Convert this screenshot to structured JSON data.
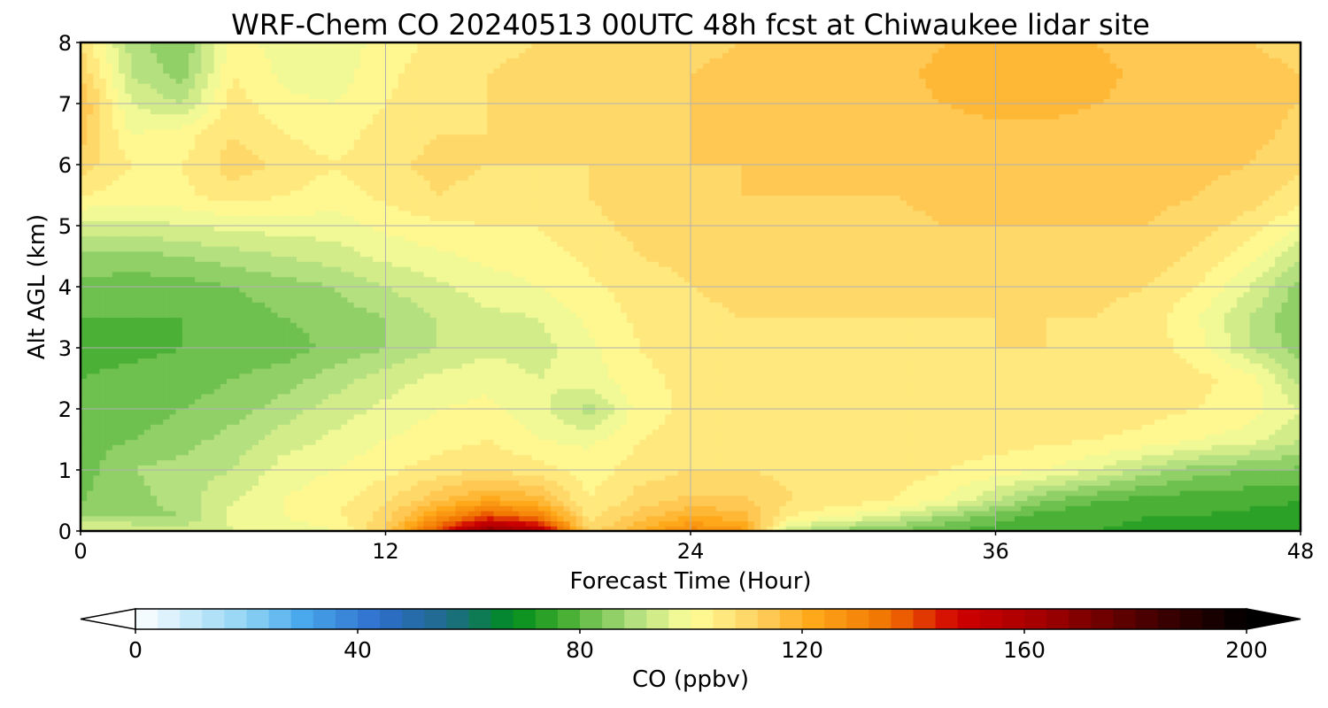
{
  "chart_data": {
    "type": "heatmap",
    "title": "WRF-Chem CO  20240513 00UTC 48h fcst at Chiwaukee lidar site",
    "xlabel": "Forecast Time (Hour)",
    "ylabel": "Alt AGL (km)",
    "xlim": [
      0,
      48
    ],
    "ylim": [
      0,
      8
    ],
    "xticks": [
      0,
      12,
      24,
      36,
      48
    ],
    "yticks": [
      0,
      1,
      2,
      3,
      4,
      5,
      6,
      7,
      8
    ],
    "grid": true,
    "x": [
      0,
      2,
      4,
      6,
      8,
      10,
      12,
      14,
      16,
      18,
      20,
      22,
      24,
      26,
      28,
      30,
      32,
      34,
      36,
      38,
      40,
      42,
      44,
      46,
      48
    ],
    "y": [
      0,
      0.25,
      0.5,
      1,
      1.5,
      2,
      2.5,
      3,
      3.5,
      4,
      4.5,
      5,
      5.5,
      6,
      6.5,
      7,
      7.5,
      8
    ],
    "z_units": "ppbv",
    "z": [
      [
        96,
        98,
        94,
        96,
        97,
        100,
        112,
        140,
        170,
        160,
        110,
        120,
        130,
        125,
        92,
        86,
        84,
        80,
        78,
        76,
        76,
        75,
        75,
        74,
        74
      ],
      [
        88,
        86,
        88,
        97,
        100,
        103,
        110,
        125,
        140,
        132,
        106,
        114,
        120,
        118,
        104,
        100,
        95,
        88,
        82,
        78,
        77,
        76,
        76,
        75,
        75
      ],
      [
        84,
        86,
        90,
        96,
        100,
        103,
        107,
        115,
        122,
        118,
        104,
        110,
        113,
        113,
        108,
        106,
        104,
        100,
        92,
        84,
        80,
        78,
        77,
        77,
        76
      ],
      [
        82,
        88,
        90,
        92,
        98,
        100,
        103,
        106,
        108,
        106,
        102,
        106,
        108,
        108,
        107,
        106,
        106,
        104,
        102,
        100,
        96,
        90,
        86,
        84,
        83
      ],
      [
        82,
        84,
        86,
        90,
        94,
        97,
        100,
        102,
        104,
        100,
        99,
        104,
        106,
        107,
        107,
        106,
        106,
        106,
        106,
        105,
        104,
        103,
        100,
        98,
        92
      ],
      [
        81,
        82,
        84,
        86,
        90,
        94,
        97,
        100,
        101,
        98,
        90,
        102,
        105,
        106,
        106,
        106,
        106,
        107,
        107,
        106,
        106,
        105,
        104,
        102,
        96
      ],
      [
        80,
        81,
        82,
        84,
        86,
        90,
        94,
        97,
        99,
        96,
        98,
        103,
        105,
        106,
        107,
        107,
        107,
        107,
        107,
        107,
        107,
        106,
        105,
        102,
        90
      ],
      [
        79,
        79,
        80,
        81,
        82,
        85,
        88,
        92,
        95,
        94,
        99,
        104,
        106,
        107,
        107,
        107,
        107,
        107,
        108,
        108,
        107,
        106,
        102,
        92,
        86
      ],
      [
        80,
        80,
        80,
        82,
        84,
        86,
        88,
        92,
        95,
        96,
        101,
        105,
        107,
        108,
        108,
        108,
        108,
        108,
        108,
        108,
        108,
        106,
        100,
        92,
        84
      ],
      [
        83,
        82,
        82,
        84,
        86,
        88,
        92,
        95,
        98,
        100,
        103,
        106,
        108,
        109,
        109,
        109,
        109,
        109,
        109,
        109,
        109,
        108,
        104,
        96,
        86
      ],
      [
        87,
        86,
        88,
        90,
        92,
        94,
        97,
        99,
        101,
        102,
        105,
        108,
        109,
        110,
        110,
        110,
        110,
        110,
        110,
        110,
        110,
        110,
        107,
        102,
        92
      ],
      [
        95,
        94,
        96,
        97,
        98,
        98,
        101,
        103,
        104,
        104,
        107,
        109,
        110,
        111,
        111,
        111,
        111,
        112,
        112,
        112,
        112,
        112,
        110,
        106,
        100
      ],
      [
        104,
        102,
        103,
        106,
        104,
        102,
        105,
        108,
        107,
        106,
        108,
        110,
        111,
        112,
        112,
        112,
        112,
        113,
        113,
        113,
        113,
        113,
        112,
        110,
        106
      ],
      [
        110,
        104,
        104,
        110,
        107,
        104,
        107,
        109,
        108,
        108,
        108,
        111,
        112,
        112,
        113,
        113,
        113,
        114,
        114,
        114,
        114,
        114,
        113,
        112,
        109
      ],
      [
        114,
        100,
        102,
        108,
        104,
        102,
        106,
        108,
        108,
        109,
        109,
        111,
        112,
        113,
        113,
        113,
        114,
        115,
        115,
        115,
        115,
        115,
        114,
        113,
        111
      ],
      [
        116,
        96,
        92,
        106,
        101,
        100,
        104,
        107,
        108,
        109,
        110,
        111,
        112,
        113,
        113,
        114,
        115,
        116,
        117,
        117,
        116,
        115,
        114,
        113,
        112
      ],
      [
        112,
        92,
        86,
        104,
        99,
        98,
        103,
        106,
        108,
        109,
        110,
        111,
        112,
        113,
        113,
        114,
        115,
        117,
        119,
        119,
        117,
        115,
        114,
        113,
        112
      ],
      [
        108,
        90,
        84,
        102,
        98,
        97,
        102,
        105,
        107,
        108,
        109,
        110,
        111,
        112,
        112,
        113,
        114,
        116,
        118,
        118,
        116,
        114,
        113,
        112,
        111
      ]
    ],
    "colorbar": {
      "label": "CO  (ppbv)",
      "min": 0,
      "max": 200,
      "step": 4,
      "ticks": [
        0,
        40,
        80,
        120,
        160,
        200
      ],
      "extend": "both",
      "stops": [
        {
          "v": 0,
          "c": "#ffffff"
        },
        {
          "v": 20,
          "c": "#8fd4f4"
        },
        {
          "v": 30,
          "c": "#4aa8ec"
        },
        {
          "v": 44,
          "c": "#2e6ecc"
        },
        {
          "v": 56,
          "c": "#1e6a8a"
        },
        {
          "v": 68,
          "c": "#008c1e"
        },
        {
          "v": 76,
          "c": "#3aa82a"
        },
        {
          "v": 90,
          "c": "#b4e080"
        },
        {
          "v": 100,
          "c": "#ffff9a"
        },
        {
          "v": 112,
          "c": "#ffd060"
        },
        {
          "v": 122,
          "c": "#ffa81a"
        },
        {
          "v": 136,
          "c": "#f07000"
        },
        {
          "v": 148,
          "c": "#d00000"
        },
        {
          "v": 164,
          "c": "#a00000"
        },
        {
          "v": 184,
          "c": "#400000"
        },
        {
          "v": 200,
          "c": "#000000"
        }
      ]
    }
  }
}
